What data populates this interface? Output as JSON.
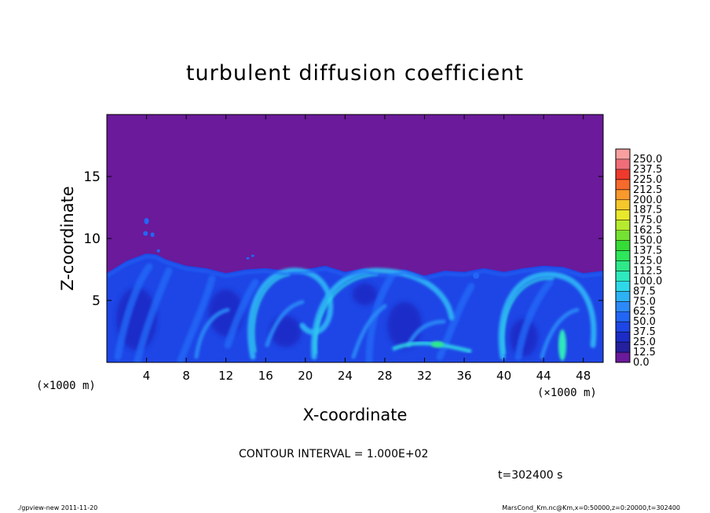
{
  "chart_data": {
    "type": "heatmap",
    "title": "turbulent diffusion coefficient",
    "xlabel": "X-coordinate",
    "ylabel": "Z-coordinate",
    "x_unit": "(×1000 m)",
    "z_unit": "(×1000 m)",
    "xlim": [
      0,
      50
    ],
    "ylim": [
      0,
      20
    ],
    "x_ticks": [
      4,
      8,
      12,
      16,
      20,
      24,
      28,
      32,
      36,
      40,
      44,
      48
    ],
    "y_ticks": [
      5,
      10,
      15
    ],
    "colorbar": {
      "levels": [
        "0.0",
        "12.5",
        "25.0",
        "37.5",
        "50.0",
        "62.5",
        "75.0",
        "87.5",
        "100.0",
        "112.5",
        "125.0",
        "137.5",
        "150.0",
        "162.5",
        "175.0",
        "187.5",
        "200.0",
        "212.5",
        "225.0",
        "237.5",
        "250.0"
      ],
      "colors": [
        "#6a1a9a",
        "#24209e",
        "#1c2cc6",
        "#1e46e6",
        "#2266f6",
        "#2c8af8",
        "#2eb2f6",
        "#2ed8e8",
        "#2ee8be",
        "#2ee88a",
        "#2ee65c",
        "#36dc36",
        "#74e232",
        "#b6ea2e",
        "#e8e82c",
        "#f4c82c",
        "#f89a2c",
        "#f66a2c",
        "#ee3a2c",
        "#f06e78",
        "#f8a0a0"
      ]
    },
    "background_color": "#6a1a9a",
    "boundary_layer_top_km": [
      [
        0,
        7.2
      ],
      [
        2,
        8.2
      ],
      [
        4,
        8.8
      ],
      [
        5,
        8.7
      ],
      [
        6,
        8.3
      ],
      [
        8,
        7.8
      ],
      [
        10,
        7.6
      ],
      [
        12,
        7.2
      ],
      [
        14,
        7.5
      ],
      [
        16,
        7.6
      ],
      [
        18,
        7.4
      ],
      [
        20,
        7.5
      ],
      [
        22,
        7.8
      ],
      [
        24,
        7.3
      ],
      [
        26,
        7.6
      ],
      [
        28,
        7.2
      ],
      [
        30,
        7.5
      ],
      [
        32,
        7.0
      ],
      [
        34,
        7.4
      ],
      [
        36,
        7.3
      ],
      [
        38,
        7.6
      ],
      [
        40,
        7.3
      ],
      [
        42,
        7.6
      ],
      [
        44,
        7.8
      ],
      [
        46,
        7.7
      ],
      [
        48,
        7.2
      ],
      [
        50,
        7.4
      ]
    ]
  },
  "contour_interval_text": "CONTOUR INTERVAL = 1.000E+02",
  "time_text": "t=302400  s",
  "footer_left": "./gpview-new   2011-11-20",
  "footer_right": "MarsCond_Km.nc@Km,x=0:50000,z=0:20000,t=302400"
}
